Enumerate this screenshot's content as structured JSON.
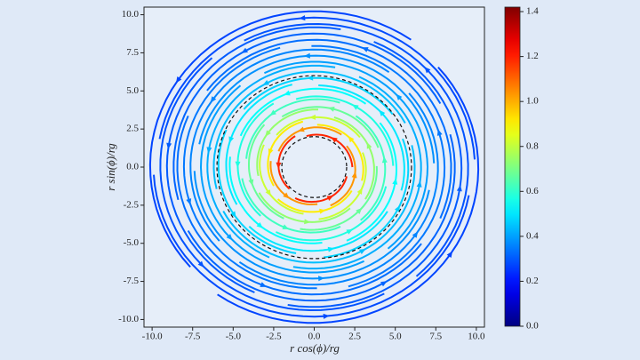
{
  "chart_data": {
    "type": "streamplot",
    "xlabel": "r cos(ϕ)/rg",
    "ylabel": "r sin(ϕ)/rg",
    "xlim": [
      -10.5,
      10.5
    ],
    "ylim": [
      -10.5,
      10.5
    ],
    "xticks": [
      {
        "value": -10,
        "label": "-10.0"
      },
      -7.5,
      {
        "value": -5,
        "label": "-5.0"
      },
      -2.5,
      {
        "value": 0,
        "label": "0.0"
      },
      2.5,
      {
        "value": 5,
        "label": "5.0"
      },
      7.5,
      {
        "value": 10,
        "label": "10.0"
      }
    ],
    "yticks": [
      {
        "value": -10,
        "label": "-10.0"
      },
      -7.5,
      {
        "value": -5,
        "label": "-5.0"
      },
      -2.5,
      {
        "value": 0,
        "label": "0.0"
      },
      2.5,
      {
        "value": 5,
        "label": "5.0"
      },
      7.5,
      {
        "value": 10,
        "label": "10.0"
      }
    ],
    "dashed_circles": [
      2,
      6
    ],
    "colormap": "jet",
    "colorbar": {
      "lim": [
        0,
        1.42
      ],
      "ticks": [
        {
          "value": 0,
          "label": "0.0"
        },
        0.2,
        0.4,
        0.6,
        0.8,
        {
          "value": 1,
          "label": "1.0"
        },
        1.2,
        1.4
      ]
    }
  }
}
